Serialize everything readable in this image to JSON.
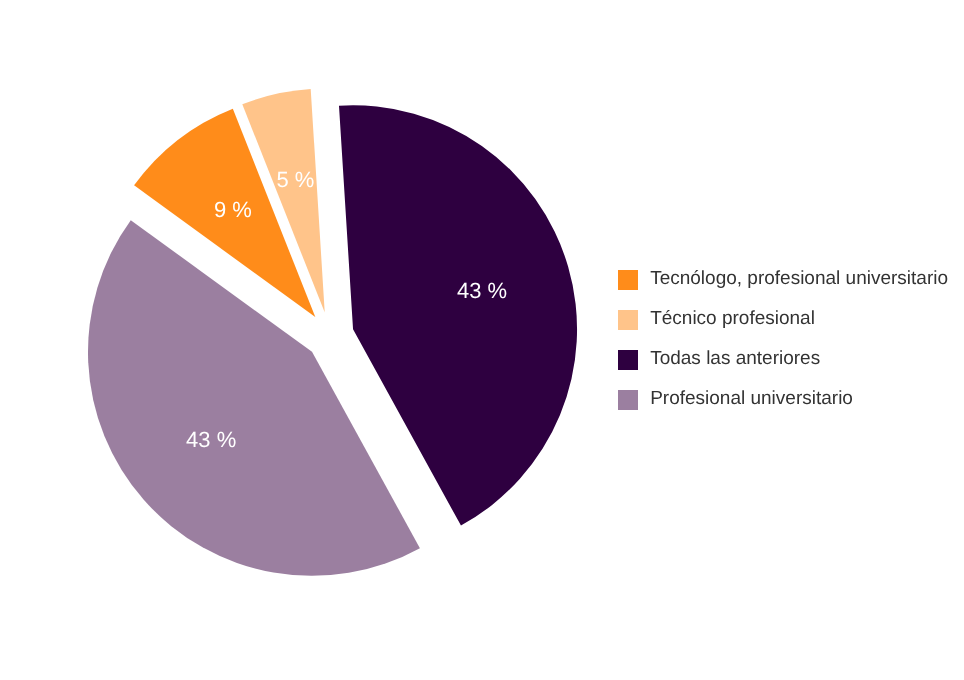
{
  "chart_data": {
    "type": "pie",
    "categories": [
      "Tecnólogo, profesional universitario",
      "Técnico profesional",
      "Todas las anteriores",
      "Profesional universitario"
    ],
    "values": [
      9,
      5,
      43,
      43
    ],
    "colors": [
      "#ff8c1a",
      "#ffc48a",
      "#2e0040",
      "#9b7fa0"
    ],
    "value_labels": [
      "9 %",
      "5 %",
      "43 %",
      "43 %"
    ],
    "legend": "right"
  }
}
